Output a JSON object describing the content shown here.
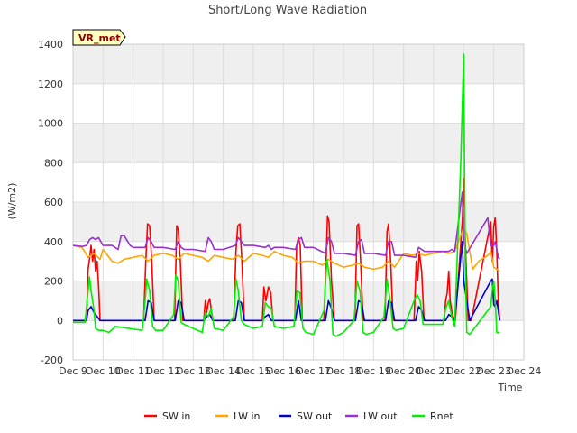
{
  "chart_data": {
    "type": "line",
    "title": "Short/Long Wave Radiation",
    "ylabel": "(W/m2)",
    "xlabel": "Time",
    "station_tag": "VR_met",
    "ylim": [
      -200,
      1400
    ],
    "yticks": [
      -200,
      0,
      200,
      400,
      600,
      800,
      1000,
      1200,
      1400
    ],
    "xlim": [
      9.0,
      24.0
    ],
    "xticks": [
      9,
      10,
      11,
      12,
      13,
      14,
      15,
      16,
      17,
      18,
      19,
      20,
      21,
      22,
      23,
      24
    ],
    "xtick_labels": [
      "Dec 9",
      "Dec 10",
      "Dec 11",
      "Dec 12",
      "Dec 13",
      "Dec 14",
      "Dec 15",
      "Dec 16",
      "Dec 17",
      "Dec 18",
      "Dec 19",
      "Dec 20",
      "Dec 21",
      "Dec 22",
      "Dec 23",
      "Dec 24"
    ],
    "grid": true,
    "background_bands": "alternating light grey",
    "legend_position": "bottom",
    "series": [
      {
        "name": "SW in",
        "color": "#ff0000",
        "x": [
          9.0,
          9.45,
          9.5,
          9.55,
          9.6,
          9.65,
          9.7,
          9.75,
          9.8,
          9.85,
          9.9,
          10.0,
          11.35,
          11.42,
          11.48,
          11.55,
          11.62,
          11.7,
          12.0,
          12.38,
          12.45,
          12.5,
          12.57,
          12.65,
          13.0,
          13.35,
          13.4,
          13.45,
          13.5,
          13.55,
          13.65,
          14.0,
          14.35,
          14.42,
          14.48,
          14.55,
          14.62,
          14.7,
          15.0,
          15.3,
          15.35,
          15.42,
          15.5,
          15.58,
          15.65,
          16.0,
          16.38,
          16.44,
          16.5,
          16.56,
          16.63,
          17.0,
          17.35,
          17.42,
          17.47,
          17.52,
          17.6,
          17.7,
          18.0,
          18.38,
          18.45,
          18.5,
          18.57,
          18.65,
          19.0,
          19.38,
          19.45,
          19.5,
          19.57,
          19.65,
          20.0,
          20.35,
          20.42,
          20.47,
          20.52,
          20.6,
          20.68,
          21.0,
          21.35,
          21.4,
          21.45,
          21.5,
          21.55,
          21.6,
          21.68,
          21.72,
          21.95,
          22.0,
          22.05,
          22.15,
          22.25,
          22.9,
          22.95,
          23.0,
          23.05,
          23.1,
          23.15,
          23.2
        ],
        "y": [
          0,
          0,
          260,
          310,
          380,
          300,
          360,
          250,
          300,
          180,
          0,
          0,
          0,
          300,
          490,
          480,
          300,
          0,
          0,
          0,
          480,
          460,
          300,
          0,
          0,
          0,
          100,
          40,
          90,
          110,
          0,
          0,
          0,
          350,
          480,
          490,
          300,
          0,
          0,
          0,
          170,
          100,
          170,
          140,
          0,
          0,
          0,
          380,
          420,
          380,
          0,
          0,
          0,
          300,
          530,
          500,
          200,
          0,
          0,
          0,
          480,
          490,
          300,
          0,
          0,
          0,
          450,
          490,
          300,
          0,
          0,
          0,
          300,
          200,
          350,
          250,
          0,
          0,
          0,
          100,
          140,
          250,
          100,
          50,
          0,
          0,
          500,
          720,
          400,
          0,
          0,
          500,
          300,
          480,
          520,
          350,
          100,
          0
        ]
      },
      {
        "name": "LW in",
        "color": "#ffa500",
        "x": [
          9.0,
          9.3,
          9.5,
          9.7,
          9.9,
          10.0,
          10.3,
          10.5,
          10.7,
          11.0,
          11.3,
          11.5,
          11.7,
          12.0,
          12.3,
          12.5,
          12.7,
          13.0,
          13.3,
          13.5,
          13.7,
          14.0,
          14.3,
          14.5,
          14.7,
          15.0,
          15.3,
          15.5,
          15.7,
          16.0,
          16.3,
          16.5,
          16.7,
          17.0,
          17.3,
          17.5,
          17.7,
          18.0,
          18.3,
          18.5,
          18.7,
          19.0,
          19.3,
          19.5,
          19.7,
          20.0,
          20.3,
          20.5,
          20.7,
          21.0,
          21.3,
          21.5,
          21.7,
          21.9,
          22.0,
          22.1,
          22.3,
          22.5,
          22.8,
          22.9,
          23.0,
          23.1,
          23.2
        ],
        "y": [
          380,
          370,
          320,
          340,
          310,
          360,
          300,
          290,
          310,
          320,
          330,
          300,
          330,
          340,
          330,
          310,
          340,
          330,
          320,
          300,
          330,
          320,
          310,
          330,
          300,
          340,
          330,
          320,
          350,
          330,
          320,
          290,
          300,
          300,
          280,
          310,
          290,
          270,
          280,
          290,
          270,
          260,
          270,
          300,
          270,
          340,
          330,
          340,
          330,
          340,
          350,
          340,
          350,
          430,
          470,
          440,
          260,
          300,
          330,
          350,
          270,
          260,
          250
        ]
      },
      {
        "name": "SW out",
        "color": "#0000cd",
        "x": [
          9.0,
          9.45,
          9.5,
          9.6,
          9.7,
          9.8,
          9.9,
          11.4,
          11.5,
          11.6,
          11.7,
          12.4,
          12.5,
          12.6,
          12.7,
          13.35,
          13.45,
          13.55,
          13.65,
          14.4,
          14.5,
          14.6,
          14.7,
          15.3,
          15.4,
          15.5,
          15.6,
          16.4,
          16.5,
          16.6,
          17.4,
          17.5,
          17.6,
          17.7,
          18.4,
          18.5,
          18.6,
          18.7,
          19.4,
          19.5,
          19.6,
          19.7,
          20.4,
          20.5,
          20.6,
          20.7,
          21.4,
          21.5,
          21.6,
          21.7,
          21.95,
          22.0,
          22.1,
          22.2,
          22.9,
          22.95,
          23.0,
          23.05,
          23.1,
          23.2
        ],
        "y": [
          0,
          0,
          50,
          70,
          40,
          20,
          0,
          0,
          100,
          90,
          0,
          0,
          100,
          90,
          0,
          0,
          20,
          30,
          0,
          0,
          100,
          90,
          0,
          0,
          20,
          30,
          0,
          0,
          100,
          0,
          0,
          100,
          60,
          0,
          0,
          100,
          90,
          0,
          0,
          100,
          90,
          0,
          0,
          70,
          50,
          0,
          0,
          30,
          20,
          0,
          400,
          200,
          100,
          0,
          200,
          210,
          80,
          70,
          100,
          0
        ]
      },
      {
        "name": "LW out",
        "color": "#9932cc",
        "x": [
          9.0,
          9.3,
          9.45,
          9.55,
          9.65,
          9.75,
          9.85,
          10.0,
          10.3,
          10.5,
          10.6,
          10.7,
          10.9,
          11.0,
          11.4,
          11.5,
          11.6,
          11.7,
          11.9,
          12.0,
          12.4,
          12.5,
          12.6,
          12.7,
          13.0,
          13.4,
          13.5,
          13.6,
          13.7,
          14.0,
          14.4,
          14.5,
          14.6,
          14.7,
          15.0,
          15.4,
          15.5,
          15.6,
          15.7,
          16.0,
          16.4,
          16.5,
          16.6,
          16.7,
          17.0,
          17.4,
          17.5,
          17.6,
          17.7,
          18.0,
          18.4,
          18.5,
          18.6,
          18.7,
          19.0,
          19.4,
          19.5,
          19.6,
          19.7,
          20.0,
          20.4,
          20.5,
          20.6,
          20.7,
          21.0,
          21.3,
          21.5,
          21.6,
          21.7,
          21.95,
          22.0,
          22.1,
          22.8,
          22.9,
          23.0,
          23.05,
          23.15,
          23.2
        ],
        "y": [
          380,
          375,
          380,
          410,
          420,
          410,
          420,
          380,
          380,
          360,
          430,
          430,
          380,
          370,
          370,
          420,
          400,
          370,
          370,
          370,
          360,
          400,
          370,
          360,
          360,
          350,
          420,
          400,
          360,
          360,
          380,
          420,
          400,
          380,
          380,
          370,
          380,
          360,
          370,
          370,
          360,
          410,
          420,
          370,
          370,
          340,
          420,
          400,
          340,
          340,
          330,
          400,
          410,
          340,
          340,
          330,
          400,
          400,
          330,
          330,
          320,
          370,
          360,
          350,
          350,
          350,
          350,
          360,
          350,
          650,
          400,
          340,
          520,
          380,
          380,
          400,
          320,
          310
        ]
      },
      {
        "name": "Rnet",
        "color": "#00ee00",
        "x": [
          9.0,
          9.4,
          9.5,
          9.55,
          9.6,
          9.65,
          9.7,
          9.75,
          9.85,
          10.0,
          10.2,
          10.35,
          10.4,
          11.3,
          11.4,
          11.45,
          11.55,
          11.65,
          11.75,
          12.0,
          12.35,
          12.42,
          12.5,
          12.6,
          12.7,
          13.0,
          13.3,
          13.4,
          13.5,
          13.6,
          13.7,
          14.0,
          14.35,
          14.42,
          14.5,
          14.6,
          14.7,
          15.0,
          15.3,
          15.4,
          15.5,
          15.6,
          15.7,
          16.0,
          16.35,
          16.45,
          16.55,
          16.65,
          16.75,
          17.0,
          17.35,
          17.45,
          17.55,
          17.65,
          17.75,
          18.0,
          18.35,
          18.45,
          18.55,
          18.65,
          18.75,
          19.0,
          19.35,
          19.45,
          19.55,
          19.65,
          19.75,
          20.0,
          20.35,
          20.45,
          20.55,
          20.65,
          21.0,
          21.3,
          21.4,
          21.5,
          21.6,
          21.7,
          21.9,
          22.0,
          22.05,
          22.1,
          22.2,
          22.9,
          22.95,
          23.0,
          23.05,
          23.1,
          23.2
        ],
        "y": [
          -10,
          -10,
          150,
          220,
          150,
          100,
          50,
          -40,
          -50,
          -50,
          -60,
          -40,
          -30,
          -50,
          100,
          210,
          150,
          -30,
          -50,
          -50,
          30,
          230,
          200,
          -10,
          -20,
          -40,
          -60,
          40,
          20,
          60,
          -40,
          -50,
          20,
          210,
          150,
          0,
          -20,
          -40,
          -30,
          90,
          70,
          60,
          -30,
          -40,
          -30,
          150,
          140,
          -40,
          -60,
          -70,
          50,
          310,
          200,
          -70,
          -80,
          -60,
          0,
          200,
          150,
          -60,
          -70,
          -60,
          20,
          210,
          100,
          -40,
          -50,
          -40,
          100,
          130,
          100,
          -20,
          -20,
          -20,
          60,
          100,
          20,
          -30,
          800,
          1350,
          300,
          -60,
          -70,
          70,
          150,
          200,
          100,
          -60,
          -60
        ]
      }
    ]
  }
}
